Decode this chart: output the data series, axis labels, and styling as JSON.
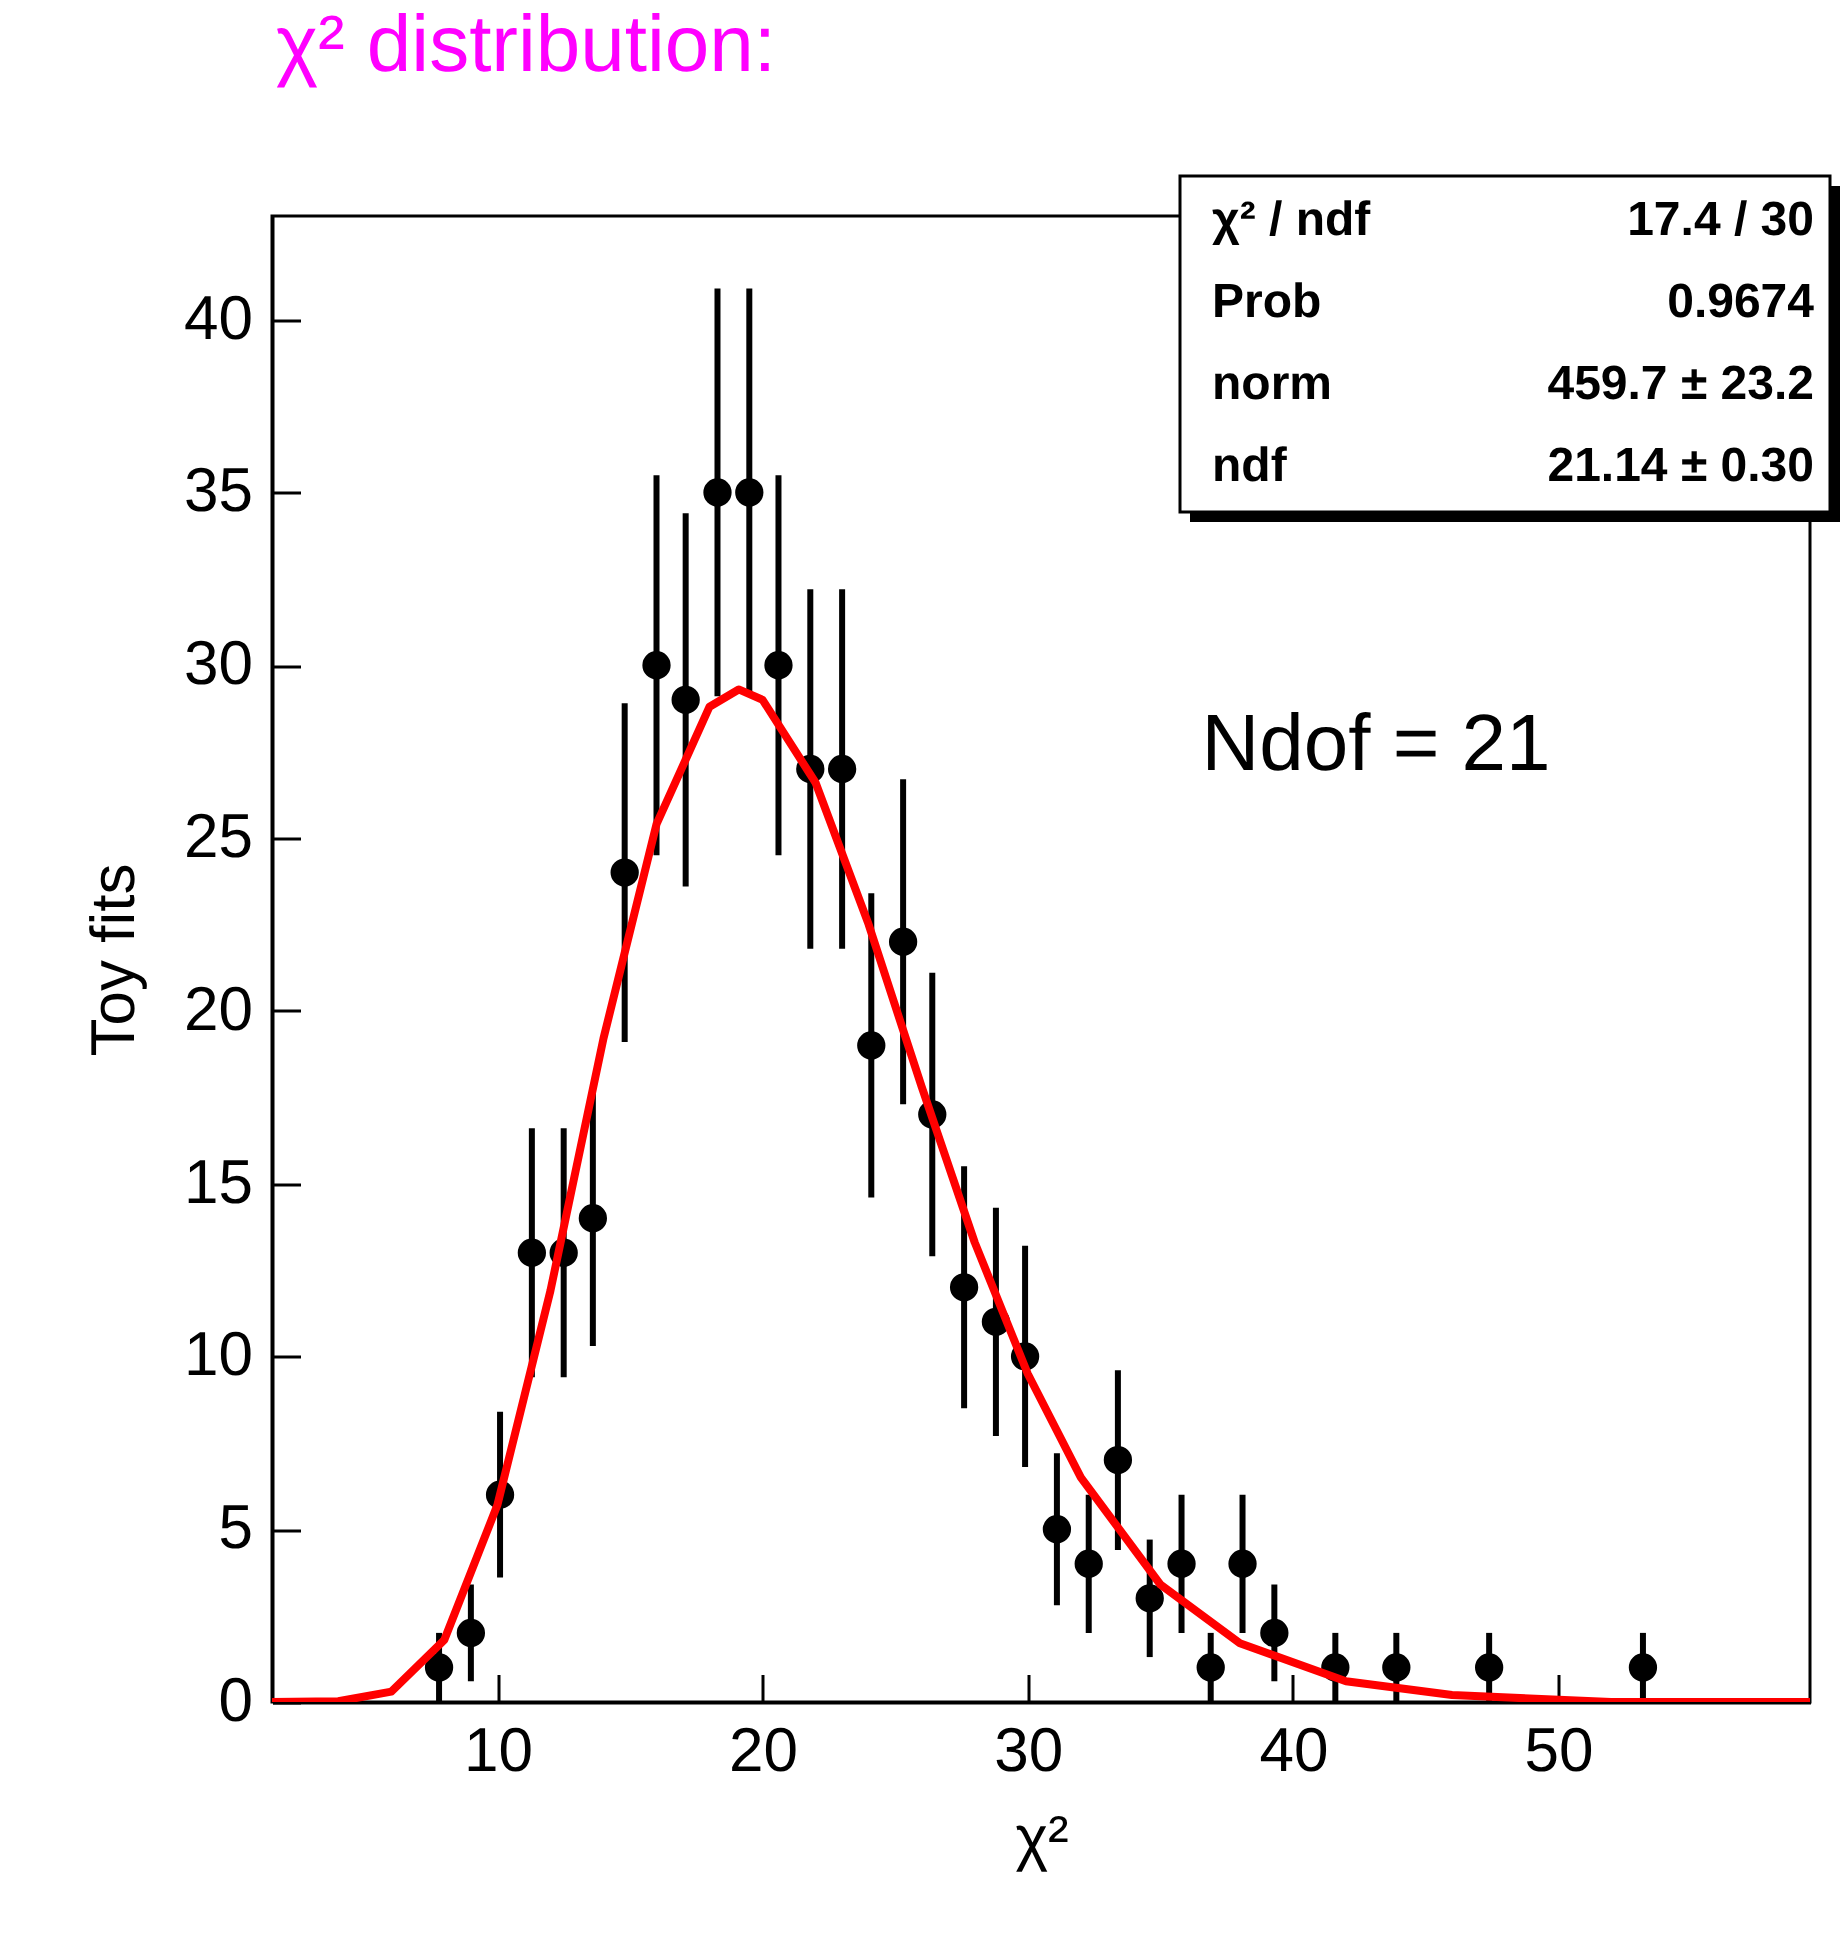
{
  "chart_data": {
    "type": "scatter",
    "title": "χ² distribution:",
    "xlabel": "χ²",
    "ylabel": "Toy fits",
    "xlim": [
      1.5,
      59.5
    ],
    "xticks": [
      10,
      20,
      30,
      40,
      50
    ],
    "ylim": [
      0,
      43
    ],
    "yticks": [
      0,
      5,
      10,
      15,
      20,
      25,
      30,
      35,
      40
    ],
    "grid": false,
    "marker": "circle",
    "annotations": [
      "χ² / ndf",
      "17.4 / 30",
      "Prob",
      "0.9674",
      "norm",
      "459.7 ± 23.2",
      "ndf",
      "21.14 ± 0.30",
      {
        "text": "Ndof = 21"
      }
    ],
    "series": [
      {
        "color": "#000000",
        "x": [
          7.8,
          9.0,
          10.1,
          11.3,
          12.5,
          13.6,
          14.8,
          16.0,
          17.1,
          18.3,
          19.5,
          20.6,
          21.8,
          23.0,
          24.1,
          25.3,
          26.4,
          27.6,
          28.8,
          29.9,
          31.1,
          32.3,
          33.4,
          34.6,
          35.8,
          36.9,
          38.1,
          39.3,
          41.6,
          43.9,
          47.4,
          53.2
        ],
        "values": [
          1,
          2,
          6,
          13,
          13,
          14,
          24,
          30,
          29,
          35,
          35,
          30,
          27,
          27,
          19,
          22,
          17,
          12,
          11,
          10,
          5,
          4,
          7,
          3,
          4,
          1,
          4,
          2,
          1,
          1,
          1,
          1
        ],
        "errors": [
          1,
          1.4,
          2.4,
          3.6,
          3.6,
          3.7,
          4.9,
          5.5,
          5.4,
          5.9,
          5.9,
          5.5,
          5.2,
          5.2,
          4.4,
          4.7,
          4.1,
          3.5,
          3.3,
          3.2,
          2.2,
          2,
          2.6,
          1.7,
          2,
          1,
          2,
          1.4,
          1,
          1,
          1,
          1
        ]
      },
      {
        "type": "line",
        "color": "#ff0000",
        "line_style": "solid",
        "marker": "none",
        "x": [
          1.5,
          4,
          6,
          8,
          10,
          12,
          14,
          16,
          18,
          19.1,
          20,
          22,
          24,
          26,
          28,
          30,
          32,
          35,
          38,
          42,
          46,
          52,
          59.5
        ],
        "values": [
          0,
          0.02,
          0.3,
          1.8,
          5.7,
          11.9,
          19.2,
          25.4,
          28.8,
          29.3,
          29.0,
          26.6,
          22.5,
          17.8,
          13.3,
          9.5,
          6.5,
          3.4,
          1.7,
          0.6,
          0.2,
          0,
          0
        ]
      }
    ]
  }
}
